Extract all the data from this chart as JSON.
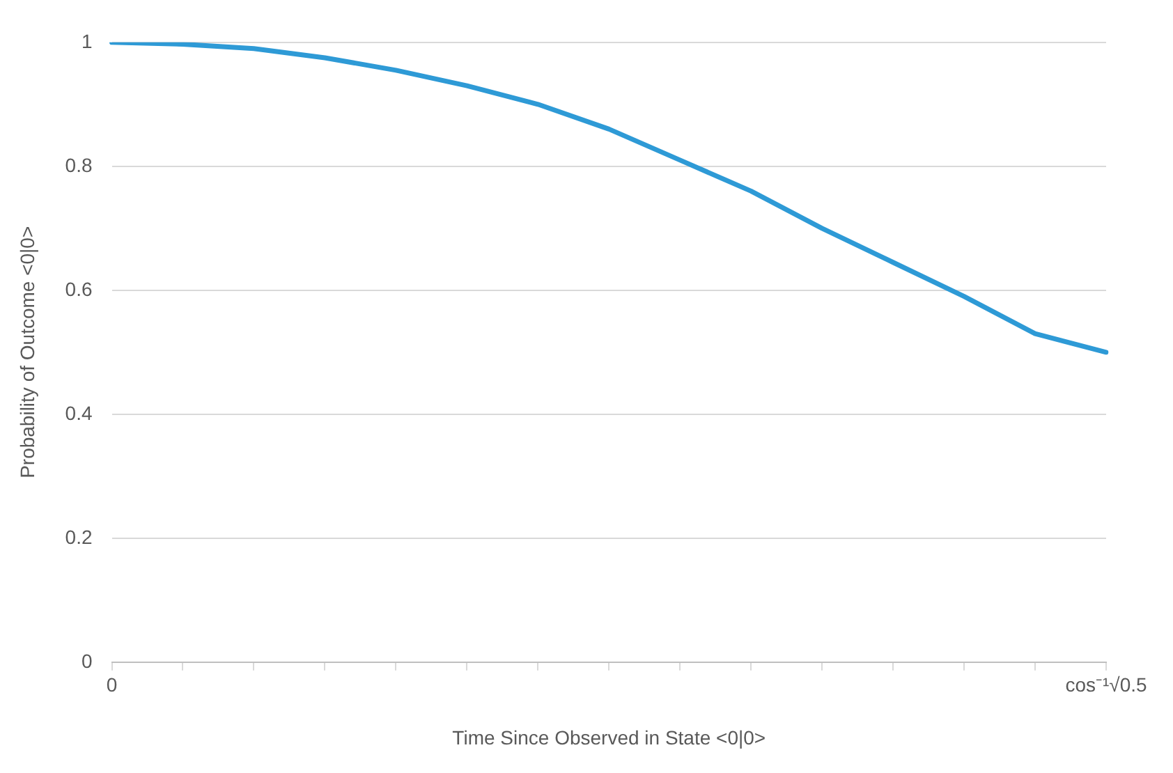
{
  "chart_data": {
    "type": "line",
    "xlabel": "Time Since Observed in State <0|0>",
    "ylabel": "Probability of Outcome <0|0>",
    "categories": [
      "0",
      null,
      null,
      null,
      null,
      null,
      null,
      null,
      null,
      null,
      null,
      null,
      null,
      null,
      "cos⁻¹√0.5"
    ],
    "series": [
      {
        "color": "#2e9ad6",
        "values": [
          1,
          0.997,
          0.99,
          0.975,
          0.955,
          0.93,
          0.9,
          0.86,
          0.81,
          0.76,
          0.7,
          0.645,
          0.59,
          0.53,
          0.5
        ]
      }
    ],
    "ylim": [
      0,
      1
    ],
    "yticks": [
      0,
      0.2,
      0.4,
      0.6,
      0.8,
      1
    ],
    "grid": "y",
    "legend": false,
    "marker": "none",
    "line_style": "solid"
  }
}
